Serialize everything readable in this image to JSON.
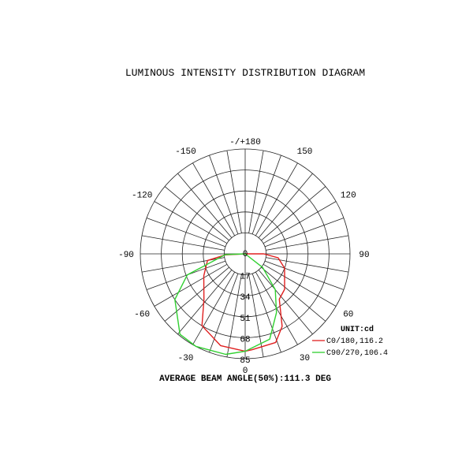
{
  "chart_data": {
    "type": "polar",
    "title": "LUMINOUS INTENSITY DISTRIBUTION DIAGRAM",
    "unit_label": "UNIT:cd",
    "radial_ticks": [
      "0",
      "17",
      "34",
      "51",
      "68",
      "85"
    ],
    "radial_range": [
      0,
      85
    ],
    "angle_labels": [
      {
        "angle": 180,
        "text": "-/+180"
      },
      {
        "angle": -150,
        "text": "-150"
      },
      {
        "angle": 150,
        "text": "150"
      },
      {
        "angle": -120,
        "text": "-120"
      },
      {
        "angle": 120,
        "text": "120"
      },
      {
        "angle": -90,
        "text": "-90"
      },
      {
        "angle": 90,
        "text": "90"
      },
      {
        "angle": -60,
        "text": "-60"
      },
      {
        "angle": 60,
        "text": "60"
      },
      {
        "angle": -30,
        "text": "-30"
      },
      {
        "angle": 30,
        "text": "30"
      },
      {
        "angle": 0,
        "text": "0"
      }
    ],
    "grid": true,
    "legend_position": "bottom-right",
    "series": [
      {
        "name": "C0/180,116.2",
        "color": "#e02020",
        "points": [
          [
            -90,
            0
          ],
          [
            -87,
            16
          ],
          [
            -80,
            31
          ],
          [
            -62,
            38
          ],
          [
            -42,
            50
          ],
          [
            -31,
            68
          ],
          [
            -15,
            77
          ],
          [
            0,
            79
          ],
          [
            4,
            78
          ],
          [
            19,
            76
          ],
          [
            27,
            66
          ],
          [
            37,
            46
          ],
          [
            48,
            43
          ],
          [
            70,
            34
          ],
          [
            83,
            27
          ],
          [
            90,
            15
          ],
          [
            92,
            0
          ]
        ]
      },
      {
        "name": "C90/270,106.4",
        "color": "#30d030",
        "points": [
          [
            -90,
            0
          ],
          [
            -88,
            16
          ],
          [
            -70,
            50
          ],
          [
            -57,
            68
          ],
          [
            -39,
            84
          ],
          [
            -28,
            85
          ],
          [
            -11,
            83
          ],
          [
            0,
            79
          ],
          [
            16,
            72
          ],
          [
            28,
            54
          ],
          [
            40,
            38
          ],
          [
            52,
            18
          ],
          [
            60,
            0
          ]
        ]
      }
    ],
    "footer": "AVERAGE BEAM ANGLE(50%):111.3 DEG"
  }
}
